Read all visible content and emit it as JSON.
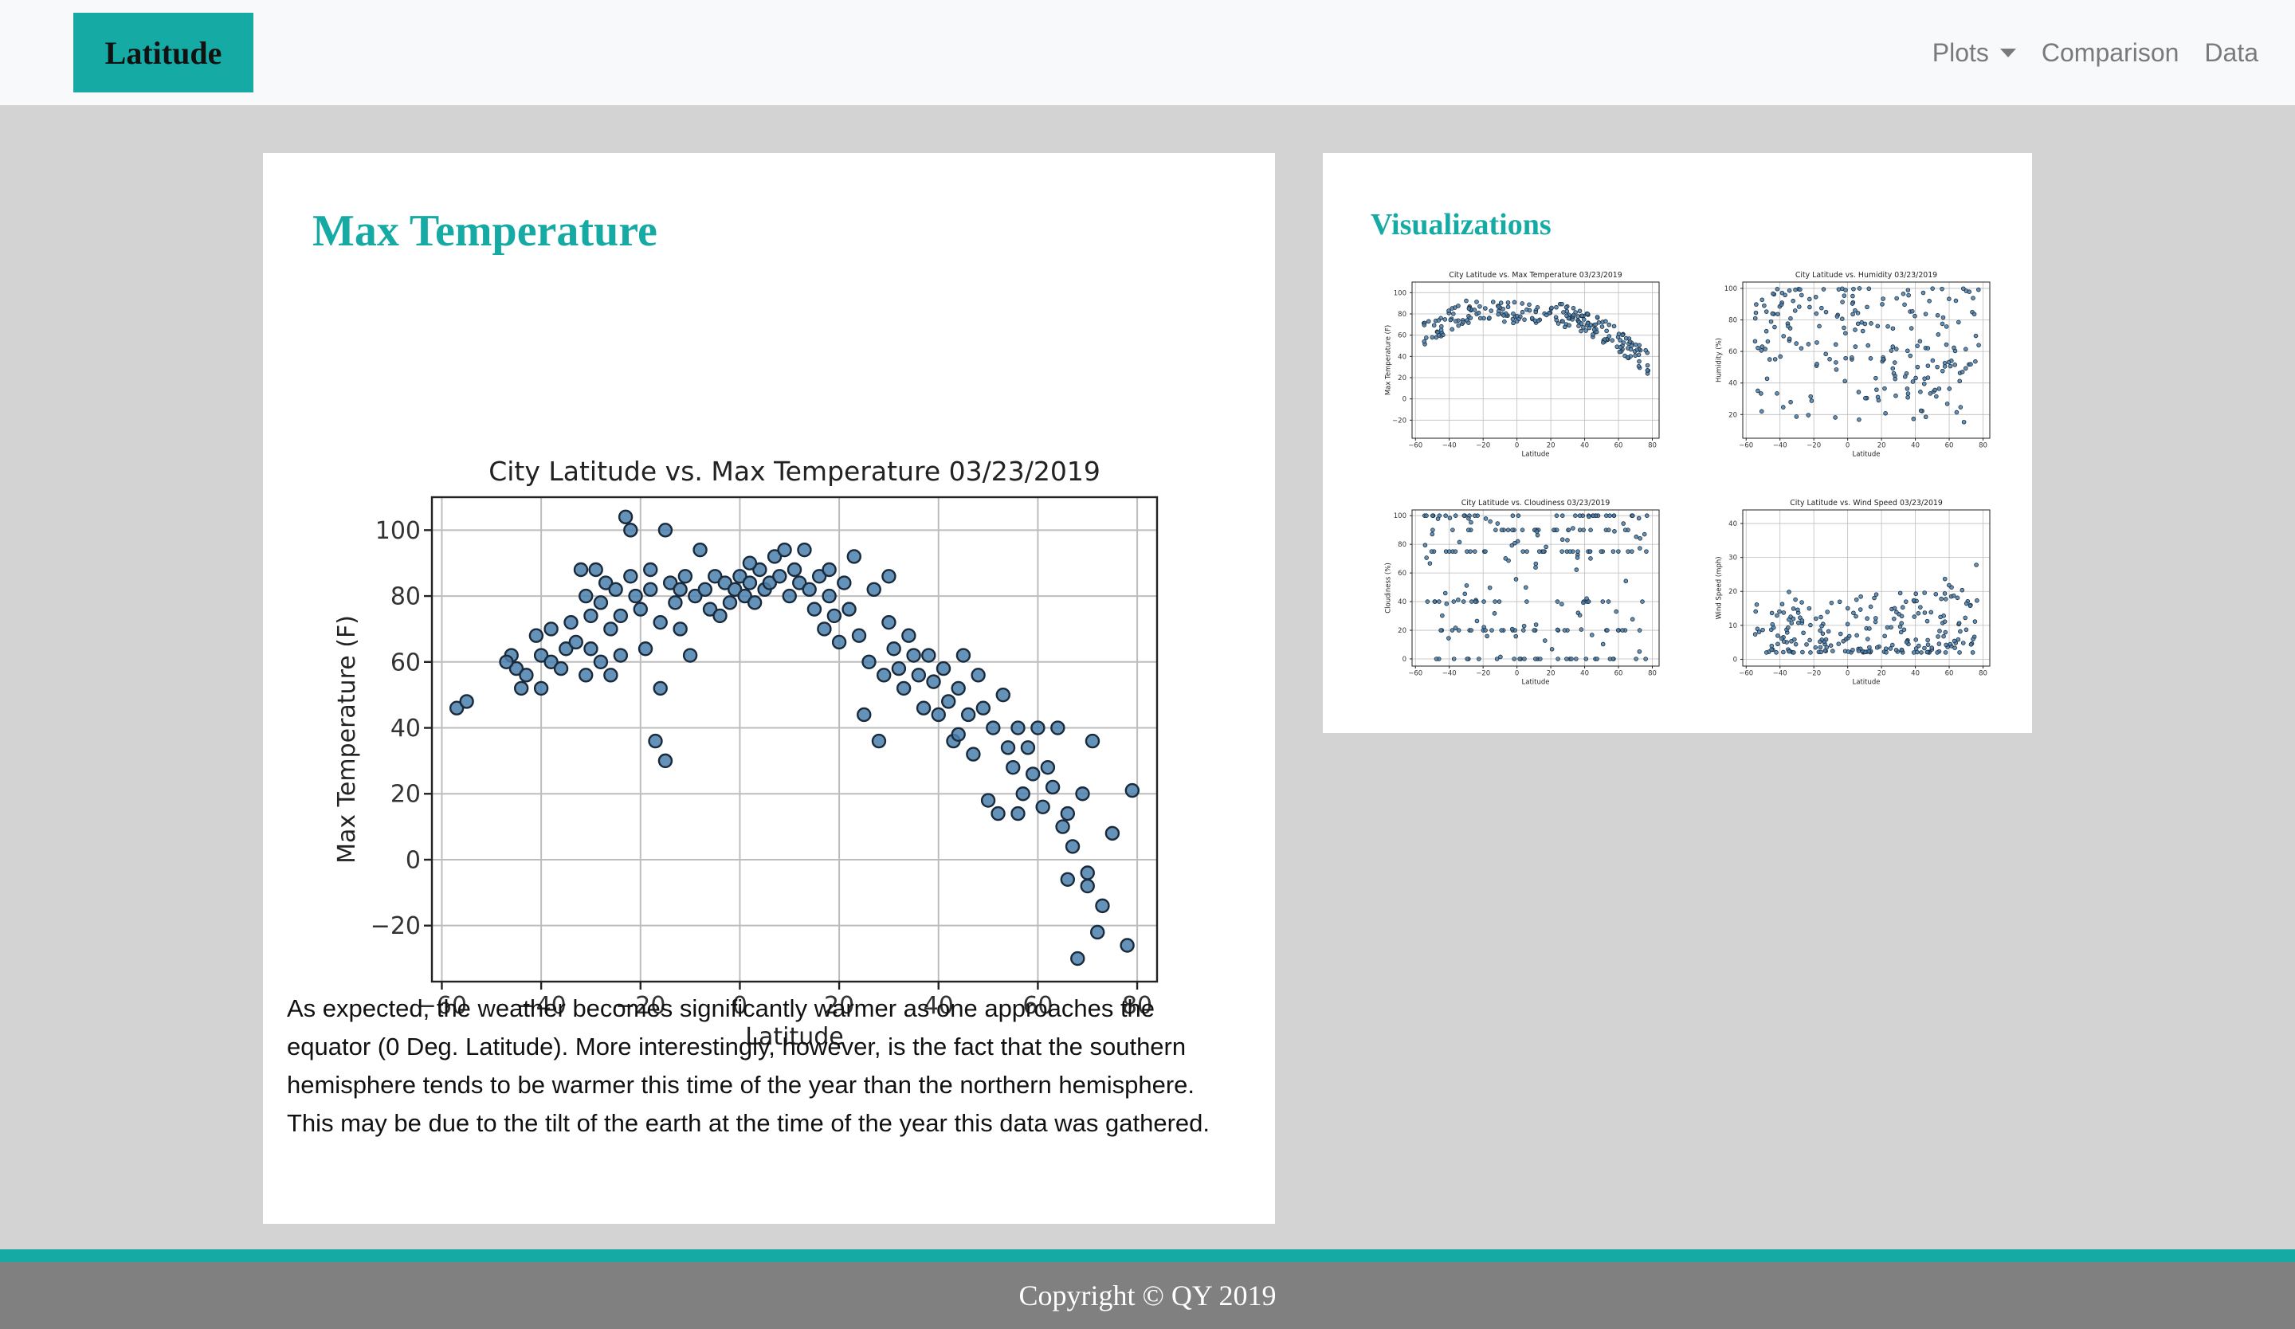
{
  "navbar": {
    "brand": "Latitude",
    "links": [
      {
        "label": "Plots",
        "dropdown": true
      },
      {
        "label": "Comparison"
      },
      {
        "label": "Data"
      }
    ]
  },
  "main": {
    "title": "Max Temperature",
    "paragraph": "As expected, the weather becomes significantly warmer as one approaches the equator (0 Deg. Latitude). More interestingly, however, is the fact that the southern hemisphere tends to be warmer this time of the year than the northern hemisphere. This may be due to the tilt of the earth at the time of the year this data was gathered."
  },
  "sidebar": {
    "title": "Visualizations"
  },
  "footer": {
    "copyright": "Copyright © QY 2019"
  },
  "colors": {
    "accent": "#16aaa5",
    "page_bg": "#d3d3d3",
    "navbar_bg": "#f8f9fa",
    "footer_bg": "#808080",
    "point_fill": "#4a7fab",
    "point_edge": "#1a2a3a"
  },
  "chart_data": [
    {
      "type": "scatter",
      "title": "City Latitude vs. Max Temperature 03/23/2019",
      "xlabel": "Latitude",
      "ylabel": "Max Temperature (F)",
      "xlim": [
        -62,
        84
      ],
      "ylim": [
        -37,
        110
      ],
      "xticks": [
        -60,
        -40,
        -20,
        0,
        20,
        40,
        60,
        80
      ],
      "yticks": [
        -20,
        0,
        20,
        40,
        60,
        80,
        100
      ],
      "grid": true,
      "points": [
        [
          -57,
          46
        ],
        [
          -55,
          48
        ],
        [
          -46,
          62
        ],
        [
          -45,
          58
        ],
        [
          -44,
          52
        ],
        [
          -43,
          56
        ],
        [
          -41,
          68
        ],
        [
          -40,
          62
        ],
        [
          -40,
          52
        ],
        [
          -38,
          60
        ],
        [
          -36,
          58
        ],
        [
          -35,
          64
        ],
        [
          -34,
          72
        ],
        [
          -33,
          66
        ],
        [
          -32,
          88
        ],
        [
          -31,
          80
        ],
        [
          -31,
          56
        ],
        [
          -30,
          74
        ],
        [
          -30,
          64
        ],
        [
          -29,
          88
        ],
        [
          -28,
          78
        ],
        [
          -28,
          60
        ],
        [
          -27,
          84
        ],
        [
          -26,
          70
        ],
        [
          -26,
          56
        ],
        [
          -25,
          82
        ],
        [
          -24,
          62
        ],
        [
          -23,
          104
        ],
        [
          -22,
          100
        ],
        [
          -22,
          86
        ],
        [
          -21,
          80
        ],
        [
          -20,
          76
        ],
        [
          -19,
          64
        ],
        [
          -18,
          88
        ],
        [
          -18,
          82
        ],
        [
          -17,
          36
        ],
        [
          -16,
          72
        ],
        [
          -16,
          52
        ],
        [
          -15,
          100
        ],
        [
          -15,
          30
        ],
        [
          -14,
          84
        ],
        [
          -13,
          78
        ],
        [
          -12,
          70
        ],
        [
          -11,
          86
        ],
        [
          -10,
          62
        ],
        [
          -9,
          80
        ],
        [
          -8,
          94
        ],
        [
          -7,
          82
        ],
        [
          -6,
          76
        ],
        [
          -5,
          86
        ],
        [
          -4,
          74
        ],
        [
          -3,
          84
        ],
        [
          -2,
          78
        ],
        [
          -1,
          82
        ],
        [
          0,
          86
        ],
        [
          1,
          80
        ],
        [
          2,
          84
        ],
        [
          3,
          78
        ],
        [
          4,
          88
        ],
        [
          5,
          82
        ],
        [
          6,
          84
        ],
        [
          7,
          92
        ],
        [
          8,
          86
        ],
        [
          9,
          94
        ],
        [
          10,
          80
        ],
        [
          11,
          88
        ],
        [
          12,
          84
        ],
        [
          13,
          94
        ],
        [
          14,
          82
        ],
        [
          15,
          76
        ],
        [
          16,
          86
        ],
        [
          17,
          70
        ],
        [
          18,
          80
        ],
        [
          19,
          74
        ],
        [
          20,
          66
        ],
        [
          21,
          84
        ],
        [
          22,
          76
        ],
        [
          23,
          92
        ],
        [
          24,
          68
        ],
        [
          25,
          44
        ],
        [
          26,
          60
        ],
        [
          27,
          82
        ],
        [
          28,
          36
        ],
        [
          29,
          56
        ],
        [
          30,
          86
        ],
        [
          31,
          64
        ],
        [
          32,
          58
        ],
        [
          33,
          52
        ],
        [
          34,
          68
        ],
        [
          35,
          62
        ],
        [
          36,
          56
        ],
        [
          37,
          46
        ],
        [
          38,
          62
        ],
        [
          39,
          54
        ],
        [
          40,
          44
        ],
        [
          41,
          58
        ],
        [
          42,
          48
        ],
        [
          43,
          36
        ],
        [
          44,
          52
        ],
        [
          45,
          62
        ],
        [
          46,
          44
        ],
        [
          47,
          32
        ],
        [
          48,
          56
        ],
        [
          49,
          46
        ],
        [
          50,
          18
        ],
        [
          51,
          40
        ],
        [
          52,
          14
        ],
        [
          53,
          50
        ],
        [
          54,
          34
        ],
        [
          55,
          28
        ],
        [
          56,
          40
        ],
        [
          57,
          20
        ],
        [
          58,
          34
        ],
        [
          59,
          26
        ],
        [
          60,
          40
        ],
        [
          61,
          16
        ],
        [
          62,
          28
        ],
        [
          63,
          22
        ],
        [
          64,
          40
        ],
        [
          65,
          10
        ],
        [
          66,
          -6
        ],
        [
          67,
          4
        ],
        [
          68,
          -30
        ],
        [
          69,
          20
        ],
        [
          70,
          -8
        ],
        [
          71,
          36
        ],
        [
          72,
          -22
        ],
        [
          73,
          -14
        ],
        [
          75,
          8
        ],
        [
          78,
          -26
        ],
        [
          79,
          21
        ],
        [
          -47,
          60
        ],
        [
          -38,
          70
        ],
        [
          -24,
          74
        ],
        [
          -12,
          82
        ],
        [
          2,
          90
        ],
        [
          18,
          88
        ],
        [
          30,
          72
        ],
        [
          44,
          38
        ],
        [
          56,
          14
        ],
        [
          66,
          14
        ],
        [
          70,
          -4
        ]
      ]
    },
    {
      "type": "scatter",
      "title": "City Latitude vs. Max Temperature 03/23/2019",
      "xlabel": "Latitude",
      "ylabel": "Max Temperature (F)",
      "xlim": [
        -62,
        84
      ],
      "ylim": [
        -37,
        110
      ],
      "xticks": [
        -60,
        -40,
        -20,
        0,
        20,
        40,
        60,
        80
      ],
      "yticks": [
        -20,
        0,
        20,
        40,
        60,
        80,
        100
      ]
    },
    {
      "type": "scatter",
      "title": "City Latitude vs. Humidity 03/23/2019",
      "xlabel": "Latitude",
      "ylabel": "Humidity (%)",
      "xlim": [
        -62,
        84
      ],
      "ylim": [
        5,
        104
      ],
      "xticks": [
        -60,
        -40,
        -20,
        0,
        20,
        40,
        60,
        80
      ],
      "yticks": [
        20,
        40,
        60,
        80,
        100
      ]
    },
    {
      "type": "scatter",
      "title": "City Latitude vs. Cloudiness 03/23/2019",
      "xlabel": "Latitude",
      "ylabel": "Cloudiness (%)",
      "xlim": [
        -62,
        84
      ],
      "ylim": [
        -5,
        104
      ],
      "xticks": [
        -60,
        -40,
        -20,
        0,
        20,
        40,
        60,
        80
      ],
      "yticks": [
        0,
        20,
        40,
        60,
        80,
        100
      ]
    },
    {
      "type": "scatter",
      "title": "City Latitude vs. Wind Speed 03/23/2019",
      "xlabel": "Latitude",
      "ylabel": "Wind Speed (mph)",
      "xlim": [
        -62,
        84
      ],
      "ylim": [
        -2,
        44
      ],
      "xticks": [
        -60,
        -40,
        -20,
        0,
        20,
        40,
        60,
        80
      ],
      "yticks": [
        0,
        10,
        20,
        30,
        40
      ]
    }
  ]
}
